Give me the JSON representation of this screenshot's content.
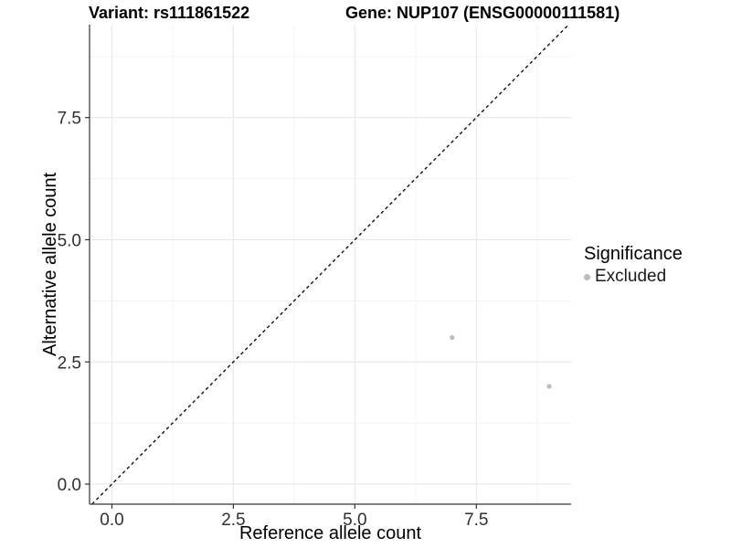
{
  "chart_data": {
    "type": "scatter",
    "title_variant": "Variant: rs111861522",
    "title_gene": "Gene: NUP107 (ENSG00000111581)",
    "xlabel": "Reference allele count",
    "ylabel": "Alternative allele count",
    "xlim": [
      -0.46,
      9.45
    ],
    "ylim": [
      -0.41,
      9.4
    ],
    "x_ticks": [
      0,
      2.5,
      5,
      7.5
    ],
    "x_tick_labels": [
      "0.0",
      "2.5",
      "5.0",
      "7.5"
    ],
    "y_ticks": [
      0,
      2.5,
      5,
      7.5
    ],
    "y_tick_labels": [
      "0.0",
      "2.5",
      "5.0",
      "7.5"
    ],
    "x_minor_ticks": [
      1.25,
      3.75,
      6.25,
      8.75
    ],
    "y_minor_ticks": [
      1.25,
      3.75,
      6.25,
      8.75
    ],
    "grid": true,
    "legend_position": "right",
    "series": [
      {
        "name": "Excluded",
        "color": "#bcbcbc",
        "points": [
          {
            "x": 7,
            "y": 3
          },
          {
            "x": 9,
            "y": 2
          }
        ]
      }
    ],
    "reference_line": {
      "type": "identity",
      "style": "dashed",
      "color": "#111111"
    },
    "legend": {
      "title": "Significance",
      "items": [
        {
          "label": "Excluded",
          "color": "#bcbcbc"
        }
      ]
    },
    "colors": {
      "background": "#ffffff",
      "grid_major": "#e8e8e8",
      "grid_minor": "#f2f2f2",
      "axis": "#333333",
      "tick_label": "#303030"
    }
  }
}
